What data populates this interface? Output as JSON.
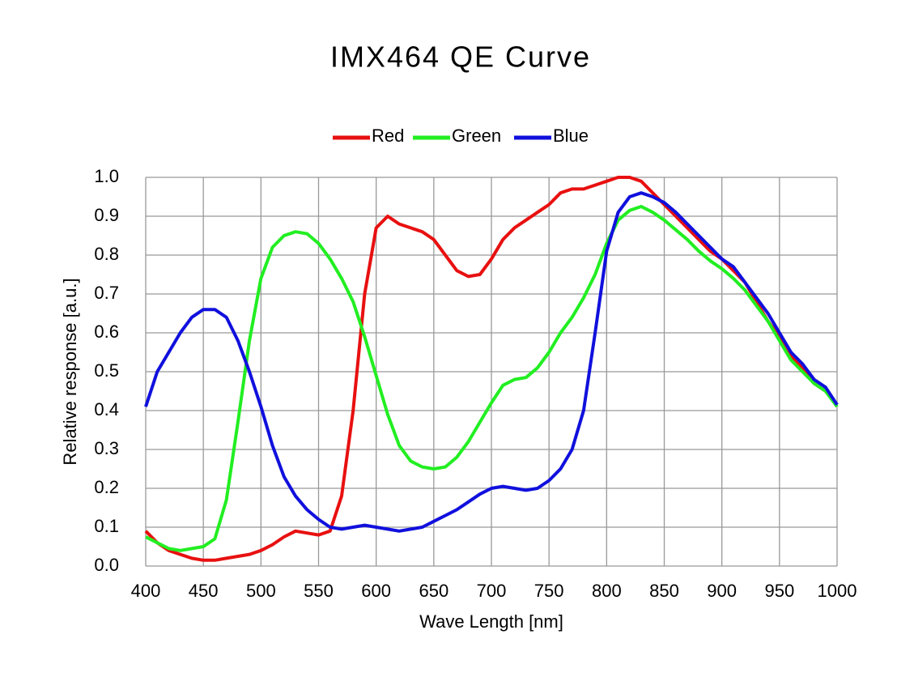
{
  "chart_data": {
    "type": "line",
    "title": "IMX464 QE Curve",
    "x_label": "Wave Length [nm]",
    "y_label": "Relative response [a.u.]",
    "x": [
      400,
      410,
      420,
      430,
      440,
      450,
      460,
      470,
      480,
      490,
      500,
      510,
      520,
      530,
      540,
      550,
      560,
      570,
      580,
      590,
      600,
      610,
      620,
      630,
      640,
      650,
      660,
      670,
      680,
      690,
      700,
      710,
      720,
      730,
      740,
      750,
      760,
      770,
      780,
      790,
      800,
      810,
      820,
      830,
      840,
      850,
      860,
      870,
      880,
      890,
      900,
      910,
      920,
      930,
      940,
      950,
      960,
      970,
      980,
      990,
      1000
    ],
    "series": [
      {
        "name": "Red",
        "color": "#e81010",
        "values": [
          0.09,
          0.06,
          0.04,
          0.03,
          0.02,
          0.015,
          0.015,
          0.02,
          0.025,
          0.03,
          0.04,
          0.055,
          0.075,
          0.09,
          0.085,
          0.08,
          0.09,
          0.18,
          0.4,
          0.7,
          0.87,
          0.9,
          0.88,
          0.87,
          0.86,
          0.84,
          0.8,
          0.76,
          0.745,
          0.75,
          0.79,
          0.84,
          0.87,
          0.89,
          0.91,
          0.93,
          0.96,
          0.97,
          0.97,
          0.98,
          0.99,
          1.0,
          1.0,
          0.99,
          0.96,
          0.93,
          0.9,
          0.87,
          0.84,
          0.81,
          0.79,
          0.76,
          0.73,
          0.68,
          0.63,
          0.59,
          0.54,
          0.51,
          0.47,
          0.45,
          0.415
        ]
      },
      {
        "name": "Green",
        "color": "#22ee22",
        "values": [
          0.075,
          0.06,
          0.045,
          0.04,
          0.045,
          0.05,
          0.07,
          0.17,
          0.37,
          0.58,
          0.74,
          0.82,
          0.85,
          0.86,
          0.855,
          0.83,
          0.79,
          0.74,
          0.68,
          0.59,
          0.49,
          0.39,
          0.31,
          0.27,
          0.255,
          0.25,
          0.255,
          0.28,
          0.32,
          0.37,
          0.42,
          0.465,
          0.48,
          0.485,
          0.51,
          0.55,
          0.6,
          0.64,
          0.69,
          0.75,
          0.83,
          0.89,
          0.915,
          0.925,
          0.91,
          0.89,
          0.865,
          0.84,
          0.81,
          0.785,
          0.765,
          0.74,
          0.71,
          0.67,
          0.63,
          0.58,
          0.53,
          0.5,
          0.47,
          0.45,
          0.41
        ]
      },
      {
        "name": "Blue",
        "color": "#1010dd",
        "values": [
          0.41,
          0.5,
          0.55,
          0.6,
          0.64,
          0.66,
          0.66,
          0.64,
          0.58,
          0.5,
          0.41,
          0.31,
          0.23,
          0.18,
          0.145,
          0.12,
          0.1,
          0.095,
          0.1,
          0.105,
          0.1,
          0.095,
          0.09,
          0.095,
          0.1,
          0.115,
          0.13,
          0.145,
          0.165,
          0.185,
          0.2,
          0.205,
          0.2,
          0.195,
          0.2,
          0.22,
          0.25,
          0.3,
          0.4,
          0.6,
          0.81,
          0.91,
          0.95,
          0.96,
          0.95,
          0.935,
          0.91,
          0.88,
          0.85,
          0.82,
          0.79,
          0.77,
          0.73,
          0.69,
          0.65,
          0.6,
          0.55,
          0.52,
          0.48,
          0.46,
          0.415
        ]
      }
    ],
    "xlim": [
      400,
      1000
    ],
    "xticks": [
      400,
      450,
      500,
      550,
      600,
      650,
      700,
      750,
      800,
      850,
      900,
      950,
      1000
    ],
    "ylim": [
      0,
      1
    ],
    "yticks": [
      {
        "value": 0,
        "label": "0.0"
      },
      0.1,
      0.2,
      0.3,
      0.4,
      0.5,
      0.6,
      0.7,
      0.8,
      0.9,
      {
        "value": 1,
        "label": "1.0"
      }
    ],
    "grid": true,
    "legend": "top"
  }
}
